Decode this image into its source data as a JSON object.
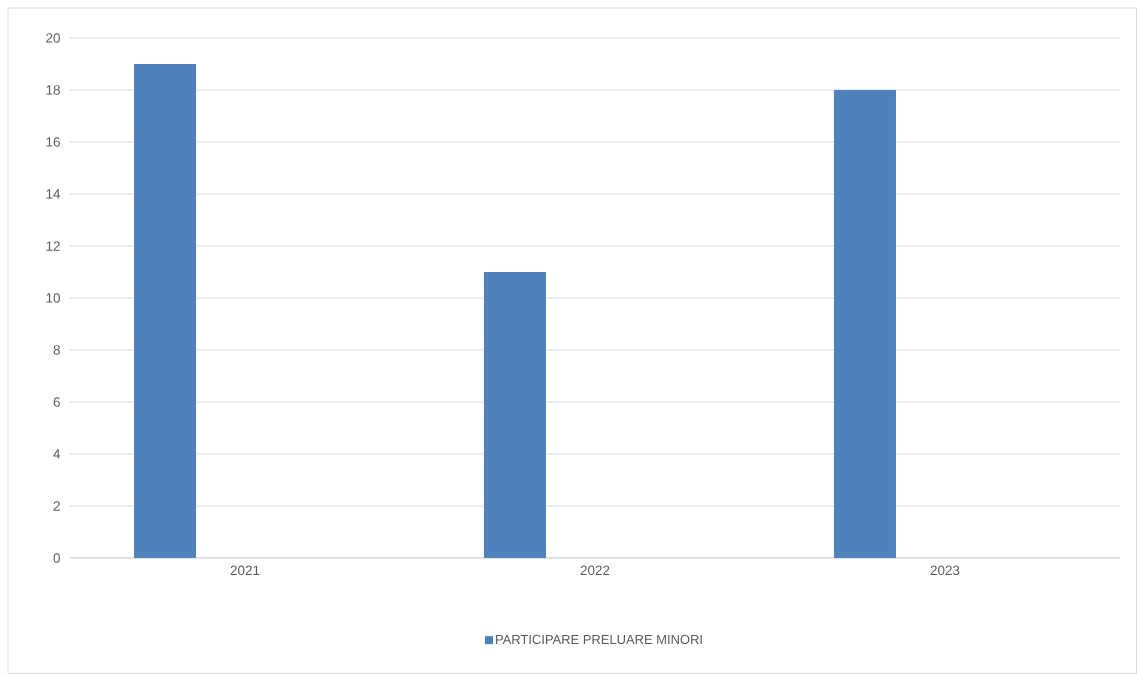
{
  "chart_data": {
    "type": "bar",
    "categories": [
      "2021",
      "2022",
      "2023"
    ],
    "series": [
      {
        "name": "PARTICIPARE  PRELUARE MINORI",
        "color": "#4f81bd",
        "values": [
          19,
          11,
          18
        ]
      }
    ],
    "ylim": [
      0,
      20
    ],
    "yticks": [
      0,
      2,
      4,
      6,
      8,
      10,
      12,
      14,
      16,
      18,
      20
    ],
    "grid": "y",
    "legend": "bottom"
  }
}
